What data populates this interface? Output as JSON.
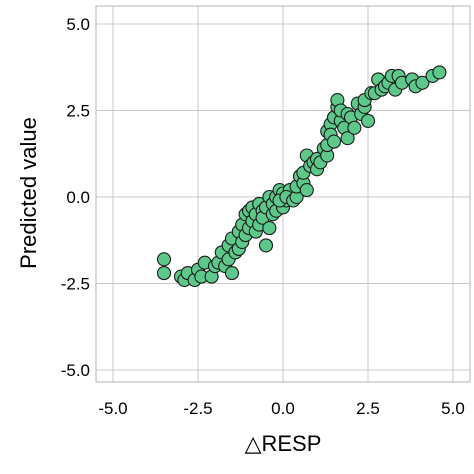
{
  "chart_data": {
    "type": "scatter",
    "xlabel": "△RESP",
    "ylabel": "Predicted value",
    "xlim": [
      -5.5,
      5.5
    ],
    "ylim": [
      -5.5,
      5.5
    ],
    "xticks": [
      -5.0,
      -2.5,
      0.0,
      2.5,
      5.0
    ],
    "yticks": [
      5.0,
      2.5,
      0.0,
      -2.5,
      -5.0
    ],
    "xtick_labels": [
      "-5.0",
      "-2.5",
      "0.0",
      "2.5",
      "5.0"
    ],
    "ytick_labels": [
      "5.0",
      "2.5",
      "0.0",
      "-2.5",
      "-5.0"
    ],
    "grid": true,
    "colors": {
      "marker_fill": "#5cc98a",
      "marker_edge": "#1a1a1a",
      "grid": "#c8c8c8",
      "frame": "#b4b4b4"
    },
    "points": [
      [
        -3.5,
        -1.8
      ],
      [
        -3.5,
        -2.2
      ],
      [
        -3.0,
        -2.3
      ],
      [
        -2.9,
        -2.4
      ],
      [
        -2.8,
        -2.2
      ],
      [
        -2.6,
        -2.4
      ],
      [
        -2.5,
        -2.1
      ],
      [
        -2.4,
        -2.3
      ],
      [
        -2.3,
        -1.9
      ],
      [
        -2.1,
        -2.3
      ],
      [
        -2.0,
        -2.0
      ],
      [
        -1.9,
        -1.9
      ],
      [
        -1.8,
        -1.6
      ],
      [
        -1.7,
        -2.0
      ],
      [
        -1.6,
        -1.8
      ],
      [
        -1.5,
        -2.2
      ],
      [
        -1.6,
        -1.4
      ],
      [
        -1.5,
        -1.2
      ],
      [
        -1.4,
        -1.6
      ],
      [
        -1.3,
        -1.0
      ],
      [
        -1.3,
        -1.5
      ],
      [
        -1.2,
        -0.8
      ],
      [
        -1.2,
        -1.3
      ],
      [
        -1.1,
        -0.5
      ],
      [
        -1.1,
        -1.1
      ],
      [
        -1.0,
        -0.9
      ],
      [
        -1.0,
        -0.4
      ],
      [
        -0.9,
        -0.7
      ],
      [
        -0.9,
        -0.3
      ],
      [
        -0.8,
        -1.0
      ],
      [
        -0.8,
        -0.5
      ],
      [
        -0.7,
        -0.2
      ],
      [
        -0.7,
        -0.8
      ],
      [
        -0.6,
        -0.4
      ],
      [
        -0.5,
        -1.4
      ],
      [
        -0.6,
        -0.6
      ],
      [
        -0.5,
        -0.3
      ],
      [
        -0.4,
        -0.9
      ],
      [
        -0.4,
        0.0
      ],
      [
        -0.3,
        -0.5
      ],
      [
        -0.3,
        -0.2
      ],
      [
        -0.2,
        0.0
      ],
      [
        -0.2,
        -0.4
      ],
      [
        -0.1,
        0.2
      ],
      [
        0.0,
        -0.3
      ],
      [
        0.0,
        0.1
      ],
      [
        0.1,
        -0.1
      ],
      [
        0.2,
        0.2
      ],
      [
        -0.1,
        -0.1
      ],
      [
        0.1,
        0.0
      ],
      [
        0.3,
        -0.1
      ],
      [
        0.4,
        0.0
      ],
      [
        0.4,
        0.3
      ],
      [
        0.5,
        0.6
      ],
      [
        0.6,
        0.4
      ],
      [
        0.7,
        0.2
      ],
      [
        0.6,
        0.7
      ],
      [
        0.7,
        1.2
      ],
      [
        0.8,
        0.9
      ],
      [
        0.9,
        1.0
      ],
      [
        1.0,
        1.1
      ],
      [
        1.0,
        0.8
      ],
      [
        1.1,
        1.0
      ],
      [
        1.2,
        1.4
      ],
      [
        1.3,
        1.2
      ],
      [
        1.3,
        1.5
      ],
      [
        1.3,
        1.9
      ],
      [
        1.4,
        2.1
      ],
      [
        1.4,
        1.8
      ],
      [
        1.5,
        2.3
      ],
      [
        1.5,
        1.6
      ],
      [
        1.6,
        2.6
      ],
      [
        1.6,
        2.8
      ],
      [
        1.7,
        2.2
      ],
      [
        1.7,
        2.5
      ],
      [
        1.8,
        2.0
      ],
      [
        1.9,
        2.4
      ],
      [
        1.9,
        1.7
      ],
      [
        2.0,
        2.3
      ],
      [
        2.1,
        2.0
      ],
      [
        2.2,
        2.7
      ],
      [
        2.3,
        2.4
      ],
      [
        2.4,
        2.6
      ],
      [
        2.4,
        2.8
      ],
      [
        2.5,
        2.2
      ],
      [
        2.6,
        3.0
      ],
      [
        2.7,
        3.0
      ],
      [
        2.8,
        3.4
      ],
      [
        2.9,
        3.1
      ],
      [
        3.0,
        3.2
      ],
      [
        3.1,
        3.3
      ],
      [
        3.2,
        3.5
      ],
      [
        3.3,
        3.1
      ],
      [
        3.4,
        3.5
      ],
      [
        3.5,
        3.3
      ],
      [
        3.8,
        3.4
      ],
      [
        3.9,
        3.2
      ],
      [
        4.1,
        3.3
      ],
      [
        4.4,
        3.5
      ],
      [
        4.6,
        3.6
      ]
    ]
  }
}
